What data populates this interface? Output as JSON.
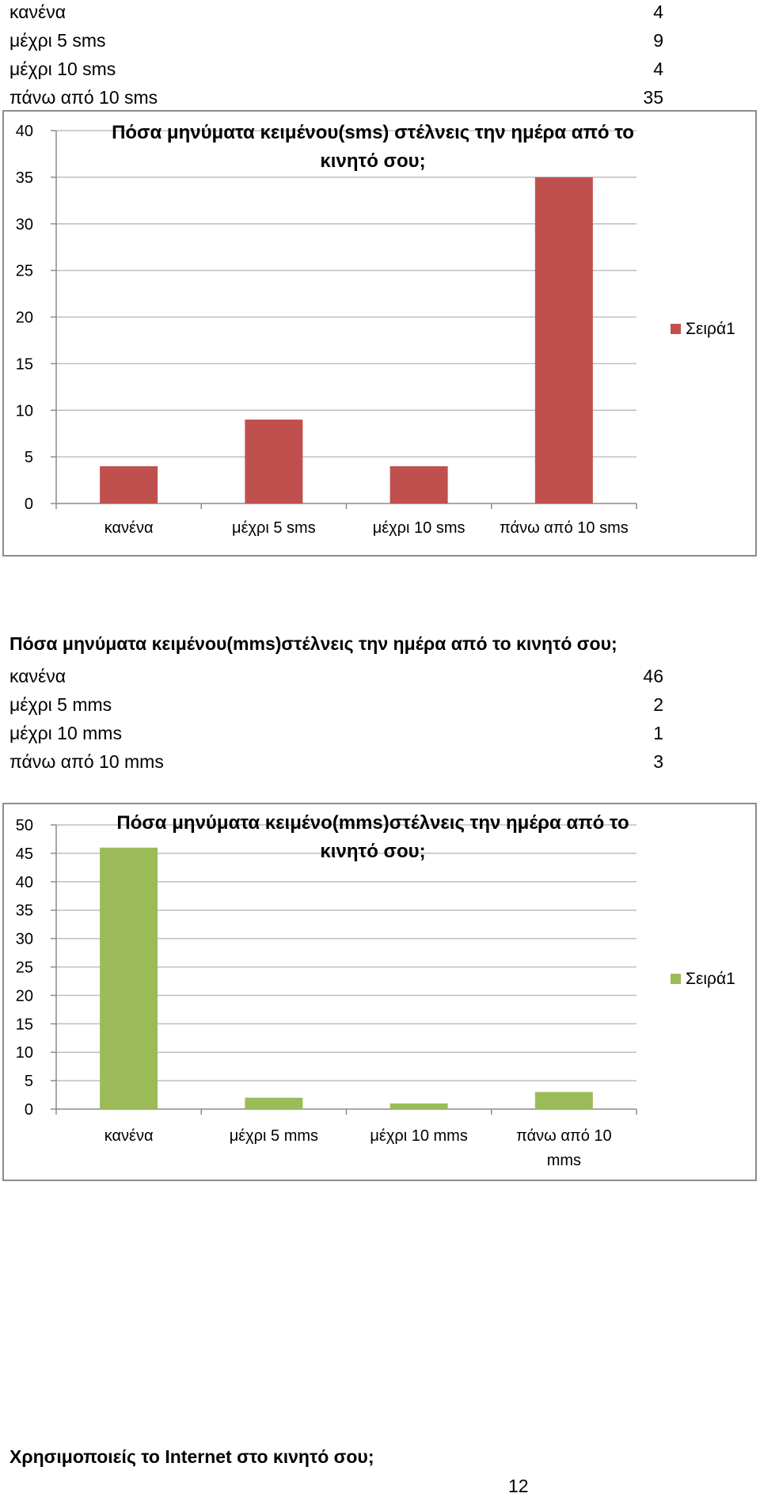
{
  "sms_table": {
    "rows": [
      {
        "label": "κανένα",
        "value": "4"
      },
      {
        "label": "μέχρι 5 sms",
        "value": "9"
      },
      {
        "label": "μέχρι 10 sms",
        "value": "4"
      },
      {
        "label": "πάνω από 10 sms",
        "value": "35"
      }
    ]
  },
  "mms_section": {
    "heading": "Πόσα μηνύματα κειμένου(mms)στέλνεις την ημέρα από το κινητό σου;",
    "rows": [
      {
        "label": "κανένα",
        "value": "46"
      },
      {
        "label": "μέχρι 5 mms",
        "value": "2"
      },
      {
        "label": "μέχρι 10 mms",
        "value": "1"
      },
      {
        "label": "πάνω από 10 mms",
        "value": "3"
      }
    ]
  },
  "internet_question": "Χρησιμοποιείς το Internet στο κινητό σου;",
  "page_number": "12",
  "colors": {
    "sms_bar": "#c0504d",
    "mms_bar": "#9bbb59",
    "grid": "#bfbfbf",
    "axis": "#8c8c8c"
  },
  "chart_data": [
    {
      "type": "bar",
      "title": "Πόσα μηνύματα κειμένου(sms) στέλνεις την ημέρα από το κινητό σου;",
      "title_lines": [
        "Πόσα μηνύματα κειμένου(sms) στέλνεις την ημέρα από το",
        "κινητό σου;"
      ],
      "categories": [
        "κανένα",
        "μέχρι 5 sms",
        "μέχρι 10 sms",
        "πάνω από 10 sms"
      ],
      "series": [
        {
          "name": "Σειρά1",
          "values": [
            4,
            9,
            4,
            35
          ]
        }
      ],
      "ylim": [
        0,
        40
      ],
      "ytick_step": 5,
      "grid": true,
      "legend": "right"
    },
    {
      "type": "bar",
      "title": "Πόσα μηνύματα κειμένο(mms)στέλνεις την ημέρα από το κινητό σου;",
      "title_lines": [
        "Πόσα μηνύματα κειμένο(mms)στέλνεις την ημέρα από το",
        "κινητό σου;"
      ],
      "categories": [
        "κανένα",
        "μέχρι 5 mms",
        "μέχρι 10 mms",
        "πάνω από 10 mms"
      ],
      "category_lines": [
        [
          "κανένα"
        ],
        [
          "μέχρι 5 mms"
        ],
        [
          "μέχρι 10 mms"
        ],
        [
          "πάνω από 10",
          "mms"
        ]
      ],
      "series": [
        {
          "name": "Σειρά1",
          "values": [
            46,
            2,
            1,
            3
          ]
        }
      ],
      "ylim": [
        0,
        50
      ],
      "ytick_step": 5,
      "grid": true,
      "legend": "right"
    }
  ]
}
